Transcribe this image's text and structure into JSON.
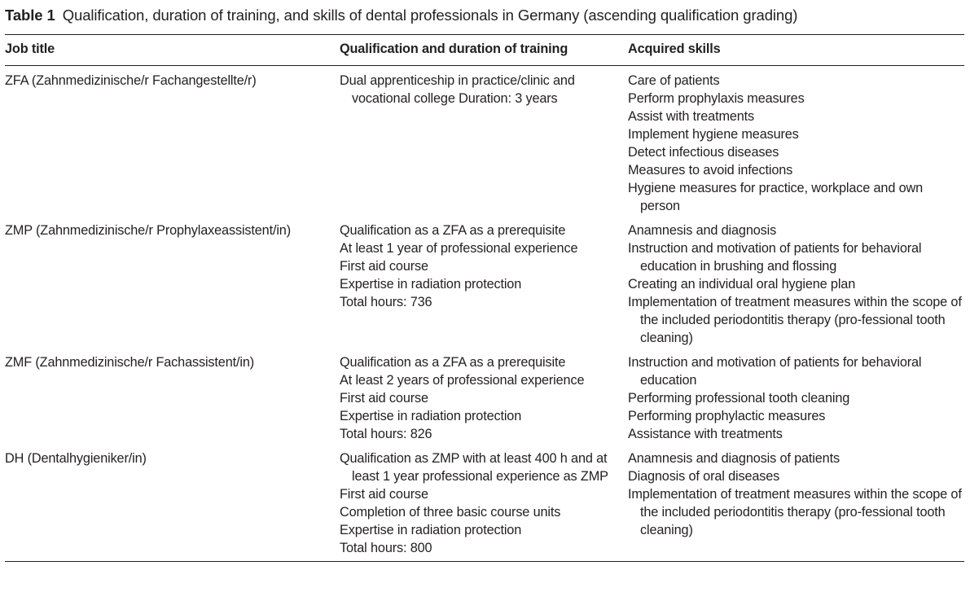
{
  "caption": {
    "label": "Table 1",
    "text": "Qualification, duration of training, and skills of dental professionals in Germany (ascending qualification grading)"
  },
  "headers": [
    "Job title",
    "Qualification and duration of training",
    "Acquired skills"
  ],
  "rows": [
    {
      "job": "ZFA (Zahnmedizinische/r Fachangestellte/r)",
      "qualification": [
        "Dual apprenticeship in practice/clinic and vocational college Duration: 3 years"
      ],
      "skills": [
        "Care of patients",
        "Perform prophylaxis measures",
        "Assist with treatments",
        "Implement hygiene measures",
        "Detect infectious diseases",
        "Measures to avoid infections",
        "Hygiene measures for practice, workplace and own person"
      ]
    },
    {
      "job": "ZMP (Zahnmedizinische/r Prophylaxeassistent/in)",
      "qualification": [
        "Qualification as a ZFA as a prerequisite",
        "At least 1 year of professional experience",
        "First aid course",
        "Expertise in radiation protection",
        "Total hours: 736"
      ],
      "skills": [
        "Anamnesis and diagnosis",
        "Instruction and motivation of patients for behavioral education in brushing and flossing",
        "Creating an individual oral hygiene plan",
        "Implementation of treatment measures within the scope of the included periodontitis therapy (pro-fessional tooth cleaning)"
      ]
    },
    {
      "job": "ZMF (Zahnmedizinische/r Fachassistent/in)",
      "qualification": [
        "Qualification as a ZFA as a prerequisite",
        "At least 2 years of professional experience",
        "First aid course",
        "Expertise in radiation protection",
        "Total hours: 826"
      ],
      "skills": [
        "Instruction and motivation of patients for behavioral education",
        "Performing professional tooth cleaning",
        "Performing prophylactic measures",
        "Assistance with treatments"
      ]
    },
    {
      "job": "DH (Dentalhygieniker/in)",
      "qualification": [
        "Qualification as ZMP with at least 400 h and at least 1 year professional experience as ZMP",
        "First aid course",
        "Completion of three basic course units",
        "Expertise in radiation protection",
        "Total hours: 800"
      ],
      "skills": [
        "Anamnesis and diagnosis of patients",
        "Diagnosis of oral diseases",
        "Implementation of treatment measures within the scope of the included periodontitis therapy (pro-fessional tooth cleaning)"
      ]
    }
  ]
}
